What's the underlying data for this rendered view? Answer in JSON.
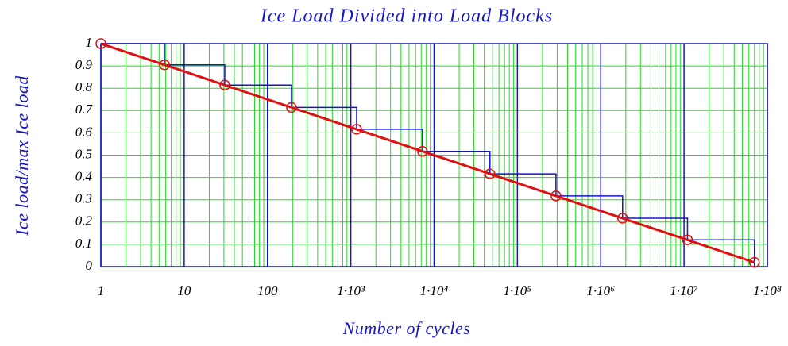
{
  "chart_data": {
    "type": "line",
    "title": "Ice Load Divided into Load Blocks",
    "x_label": "Number of cycles",
    "y_label": "Ice load/max Ice load",
    "xscale": "log",
    "xlim": [
      1,
      100000000
    ],
    "ylim": [
      0,
      1
    ],
    "xticks": [
      1,
      10,
      100,
      {
        "value": 1000,
        "label": "1·10³"
      },
      {
        "value": 10000,
        "label": "1·10⁴"
      },
      {
        "value": 100000,
        "label": "1·10⁵"
      },
      {
        "value": 1000000,
        "label": "1·10⁶"
      },
      {
        "value": 10000000,
        "label": "1·10⁷"
      },
      {
        "value": 100000000,
        "label": "1·10⁸"
      }
    ],
    "yticks": [
      0,
      0.1,
      0.2,
      0.3,
      0.4,
      0.5,
      0.6,
      0.7,
      0.8,
      0.9,
      1
    ],
    "grid": true,
    "minor_grid": true,
    "grid_color": "#22dd22",
    "major_grid_color": "#1515c8",
    "series": [
      {
        "color": "#1515c8",
        "style": "step",
        "x": [
          1,
          5.8,
          30.7,
          194,
          1175,
          7250,
          46800,
          290000,
          1830000,
          11000000,
          70000000,
          70000000
        ],
        "values": [
          1,
          0.905,
          0.814,
          0.714,
          0.616,
          0.517,
          0.416,
          0.317,
          0.217,
          0.12,
          0.019,
          0
        ]
      },
      {
        "color": "#e01010",
        "style": "line",
        "marker": "circle",
        "x": [
          1,
          5.8,
          30.7,
          194,
          1175,
          7250,
          46800,
          290000,
          1830000,
          11000000,
          70000000
        ],
        "values": [
          1,
          0.905,
          0.814,
          0.714,
          0.616,
          0.517,
          0.416,
          0.317,
          0.217,
          0.12,
          0.019
        ]
      }
    ]
  }
}
